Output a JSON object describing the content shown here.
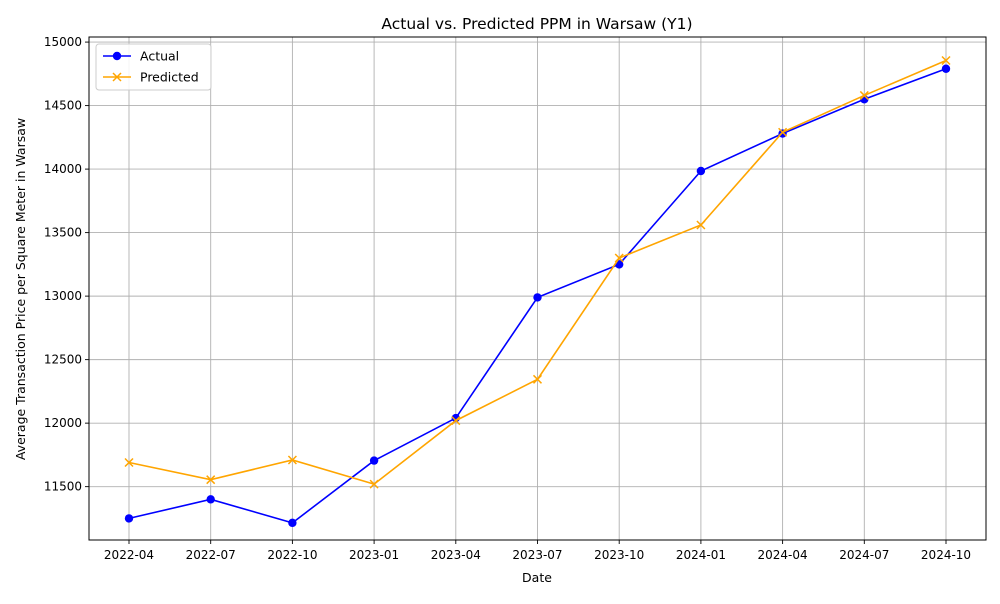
{
  "chart_data": {
    "type": "line",
    "title": "Actual vs. Predicted PPM in Warsaw (Y1)",
    "xlabel": "Date",
    "ylabel": "Average Transaction Price per Square Meter in Warsaw",
    "x": [
      "2022-04",
      "2022-07",
      "2022-10",
      "2023-01",
      "2023-04",
      "2023-07",
      "2023-10",
      "2024-01",
      "2024-04",
      "2024-07",
      "2024-10"
    ],
    "x_tick_labels": [
      "2022-04",
      "2022-07",
      "2022-10",
      "2023-01",
      "2023-04",
      "2023-07",
      "2023-10",
      "2024-01",
      "2024-04",
      "2024-07",
      "2024-10"
    ],
    "y_ticks": [
      11500,
      12000,
      12500,
      13000,
      13500,
      14000,
      14500,
      15000
    ],
    "ylim": [
      11080,
      15040
    ],
    "grid": true,
    "legend_position": "top-left",
    "series": [
      {
        "name": "Actual",
        "color": "#0000ff",
        "marker": "circle",
        "values": [
          11250,
          11400,
          11215,
          11705,
          12040,
          12990,
          13250,
          13985,
          14280,
          14550,
          14790
        ]
      },
      {
        "name": "Predicted",
        "color": "#ffa500",
        "marker": "x",
        "values": [
          11690,
          11555,
          11710,
          11520,
          12020,
          12345,
          13300,
          13560,
          14290,
          14580,
          14855
        ]
      }
    ]
  }
}
